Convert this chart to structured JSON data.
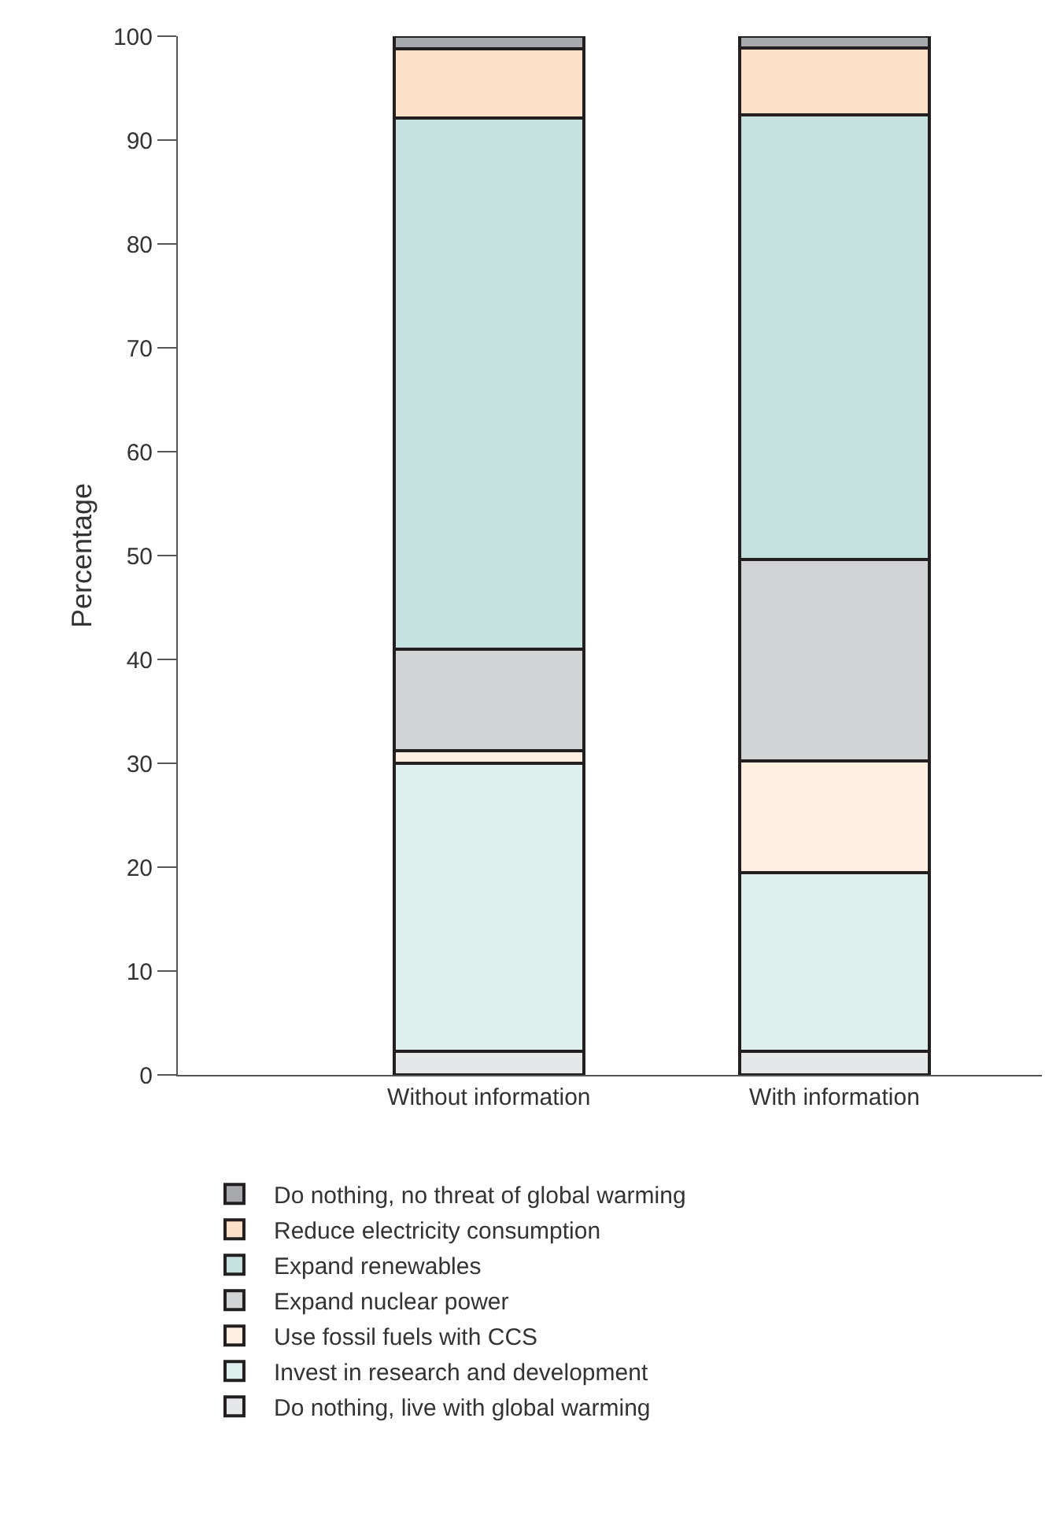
{
  "chart_data": {
    "type": "bar",
    "stacked": true,
    "ylabel": "Percentage",
    "categories": [
      "Without information",
      "With information"
    ],
    "series": [
      {
        "name": "Do nothing, live with global warming",
        "color": "#e6e7e8",
        "values": [
          2.3,
          2.3
        ]
      },
      {
        "name": "Invest in research and development",
        "color": "#deefee",
        "values": [
          27.7,
          17.2
        ]
      },
      {
        "name": "Use fossil fuels with CCS",
        "color": "#fdefe2",
        "values": [
          1.2,
          10.7
        ]
      },
      {
        "name": "Expand nuclear power",
        "color": "#d1d3d4",
        "values": [
          9.8,
          19.4
        ]
      },
      {
        "name": "Expand renewables",
        "color": "#c5e2e1",
        "values": [
          51.1,
          42.8
        ]
      },
      {
        "name": "Reduce electricity consumption",
        "color": "#fde0c8",
        "values": [
          6.7,
          6.5
        ]
      },
      {
        "name": "Do nothing, no threat of global warming",
        "color": "#a7a9ac",
        "values": [
          1.2,
          1.1
        ]
      }
    ],
    "ylim": [
      0,
      100
    ],
    "yticks": [
      0,
      10,
      20,
      30,
      40,
      50,
      60,
      70,
      80,
      90,
      100
    ],
    "grid": false,
    "legend": "bottom"
  }
}
